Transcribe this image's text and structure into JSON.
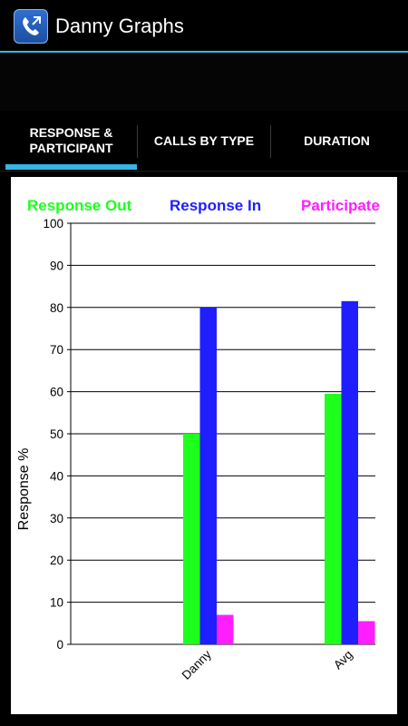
{
  "app": {
    "title": "Danny Graphs",
    "icon": "phone-call-icon"
  },
  "tabs": [
    {
      "label_line1": "RESPONSE &",
      "label_line2": "PARTICIPANT",
      "selected": true
    },
    {
      "label_line1": "CALLS BY TYPE",
      "label_line2": "",
      "selected": false
    },
    {
      "label_line1": "DURATION",
      "label_line2": "",
      "selected": false
    }
  ],
  "colors": {
    "accent": "#33b5e5",
    "response_out": "#1eff1e",
    "response_in": "#1e1eff",
    "participate": "#ff1eff"
  },
  "chart_data": {
    "type": "bar",
    "categories": [
      "Danny",
      "Avg"
    ],
    "series": [
      {
        "name": "Response Out",
        "values": [
          50,
          59.5
        ]
      },
      {
        "name": "Response In",
        "values": [
          80,
          81.5
        ]
      },
      {
        "name": "Participate",
        "values": [
          7,
          5.5
        ]
      }
    ],
    "ylabel": "Response %",
    "xlabel": "",
    "ylim": [
      0,
      100
    ],
    "yticks": [
      "0",
      "10",
      "20",
      "30",
      "40",
      "50",
      "60",
      "70",
      "80",
      "90",
      "100"
    ],
    "grid": true,
    "legend_position": "top"
  }
}
